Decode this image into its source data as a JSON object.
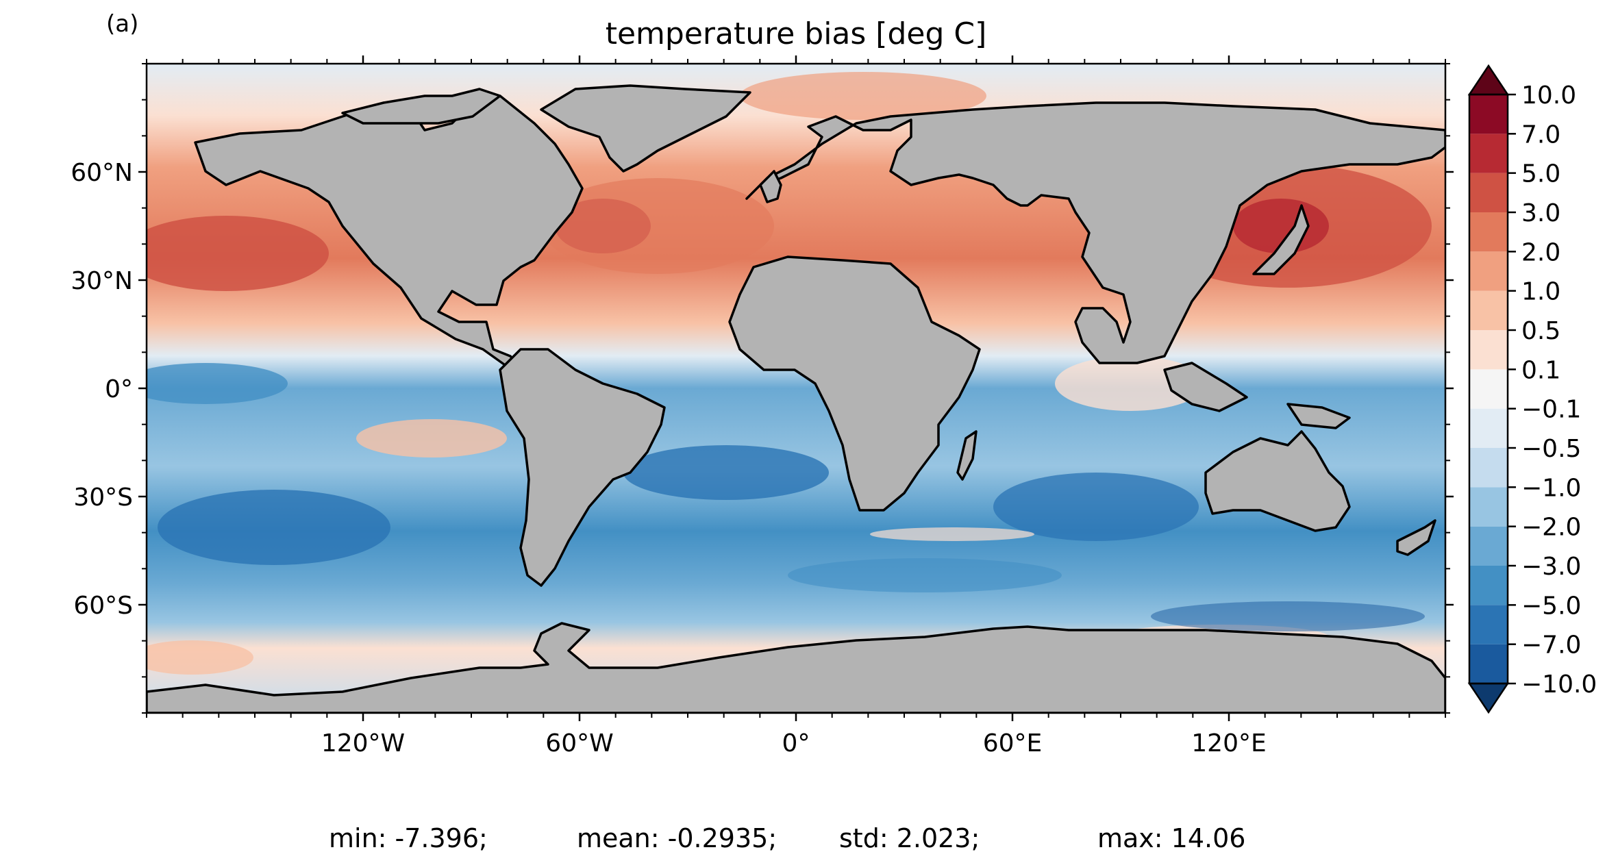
{
  "panel_label": "(a)",
  "title": "temperature bias [deg C]",
  "axes": {
    "y_ticks": [
      {
        "lat": 60,
        "label": "60°N"
      },
      {
        "lat": 30,
        "label": "30°N"
      },
      {
        "lat": 0,
        "label": "0°"
      },
      {
        "lat": -30,
        "label": "30°S"
      },
      {
        "lat": -60,
        "label": "60°S"
      }
    ],
    "x_ticks": [
      {
        "lon": -120,
        "label": "120°W"
      },
      {
        "lon": -60,
        "label": "60°W"
      },
      {
        "lon": 0,
        "label": "0°"
      },
      {
        "lon": 60,
        "label": "60°E"
      },
      {
        "lon": 120,
        "label": "120°E"
      }
    ]
  },
  "colorbar": {
    "extend": "both",
    "levels": [
      {
        "label": "−10.0",
        "value": -10
      },
      {
        "label": "−7.0",
        "value": -7
      },
      {
        "label": "−5.0",
        "value": -5
      },
      {
        "label": "−3.0",
        "value": -3
      },
      {
        "label": "−2.0",
        "value": -2
      },
      {
        "label": "−1.0",
        "value": -1
      },
      {
        "label": "−0.5",
        "value": -0.5
      },
      {
        "label": "−0.1",
        "value": -0.1
      },
      {
        "label": "0.1",
        "value": 0.1
      },
      {
        "label": "0.5",
        "value": 0.5
      },
      {
        "label": "1.0",
        "value": 1
      },
      {
        "label": "2.0",
        "value": 2
      },
      {
        "label": "3.0",
        "value": 3
      },
      {
        "label": "5.0",
        "value": 5
      },
      {
        "label": "7.0",
        "value": 7
      },
      {
        "label": "10.0",
        "value": 10
      }
    ],
    "colors": [
      "#0d3a6e",
      "#1a5a9e",
      "#2b74b4",
      "#4390c4",
      "#6aa9d3",
      "#98c5e2",
      "#c5dcee",
      "#e2ecf4",
      "#f5f5f5",
      "#fbe0d2",
      "#f8c2a6",
      "#f0a080",
      "#e27a5c",
      "#cf5244",
      "#b72a33",
      "#8c0a25",
      "#5e0418"
    ],
    "over_color": "#5e0418",
    "under_color": "#0d3a6e"
  },
  "colors": {
    "land": "#b3b3b3",
    "coastline": "#000000"
  },
  "stats": {
    "min": "min: -7.396;",
    "mean": "mean: -0.2935;",
    "std": "std: 2.023;",
    "max": "max: 14.06"
  }
}
